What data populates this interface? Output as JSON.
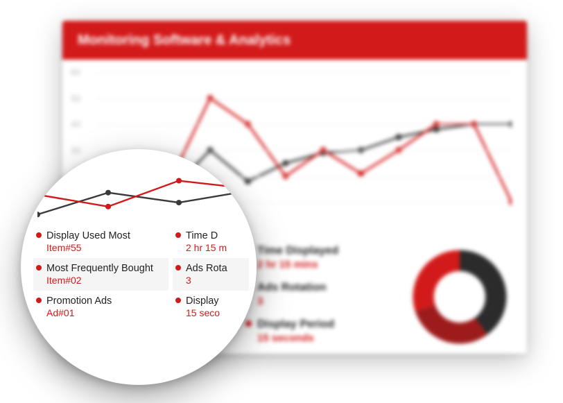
{
  "header": {
    "title": "Monitoring Software & Analytics"
  },
  "colors": {
    "brand": "#d31a1a",
    "seriesA": "#d31a1a",
    "seriesB": "#3a3a3a",
    "grid": "#eeeeee",
    "ylabel": "#bdbdbd",
    "text": "#222222",
    "donut1": "#9e1b1b",
    "donut2": "#d31a1a",
    "donut3": "#2b2b2b"
  },
  "chart": {
    "type": "line",
    "ylim": [
      0,
      60
    ],
    "ytick_step": 10,
    "yticks": [
      "0",
      "10",
      "20",
      "30",
      "40",
      "50",
      "60"
    ],
    "seriesA": [
      8,
      5,
      20,
      50,
      40,
      20,
      30,
      21,
      30,
      40,
      40,
      10
    ],
    "seriesB": [
      2,
      12,
      15,
      30,
      18,
      25,
      29,
      30,
      35,
      38,
      40,
      40
    ],
    "marker": "circle",
    "marker_r": 4.5,
    "line_w": 3
  },
  "statsA": [
    {
      "label": "Display Used Most",
      "value": "Item#55"
    },
    {
      "label": "Most Frequently Bought",
      "value": "Item#02"
    },
    {
      "label": "Promotion Ads",
      "value": "Ad#01"
    }
  ],
  "statsB": [
    {
      "label": "Time Displayed",
      "value": "2 hr 15 mins"
    },
    {
      "label": "Ads Rotation",
      "value": "3"
    },
    {
      "label": "Display Period",
      "value": "15 seconds"
    }
  ],
  "donut": {
    "type": "donut",
    "slices": [
      {
        "value": 40,
        "color": "#2b2b2b"
      },
      {
        "value": 30,
        "color": "#9e1b1b"
      },
      {
        "value": 30,
        "color": "#d31a1a"
      }
    ],
    "hole": 0.55
  },
  "lens": {
    "chart": {
      "ylim": [
        0,
        60
      ],
      "seriesA": [
        24,
        12,
        38,
        30
      ],
      "seriesB": [
        4,
        26,
        16,
        28
      ],
      "marker_r": 4,
      "line_w": 2.4
    },
    "colA": [
      {
        "label": "Display Used Most",
        "value": "Item#55"
      },
      {
        "label": "Most Frequently Bought",
        "value": "Item#02"
      },
      {
        "label": "Promotion Ads",
        "value": "Ad#01"
      }
    ],
    "colB": [
      {
        "label": "Time D",
        "value": "2 hr 15 m"
      },
      {
        "label": "Ads Rota",
        "value": "3"
      },
      {
        "label": "Display",
        "value": "15 seco"
      }
    ]
  }
}
